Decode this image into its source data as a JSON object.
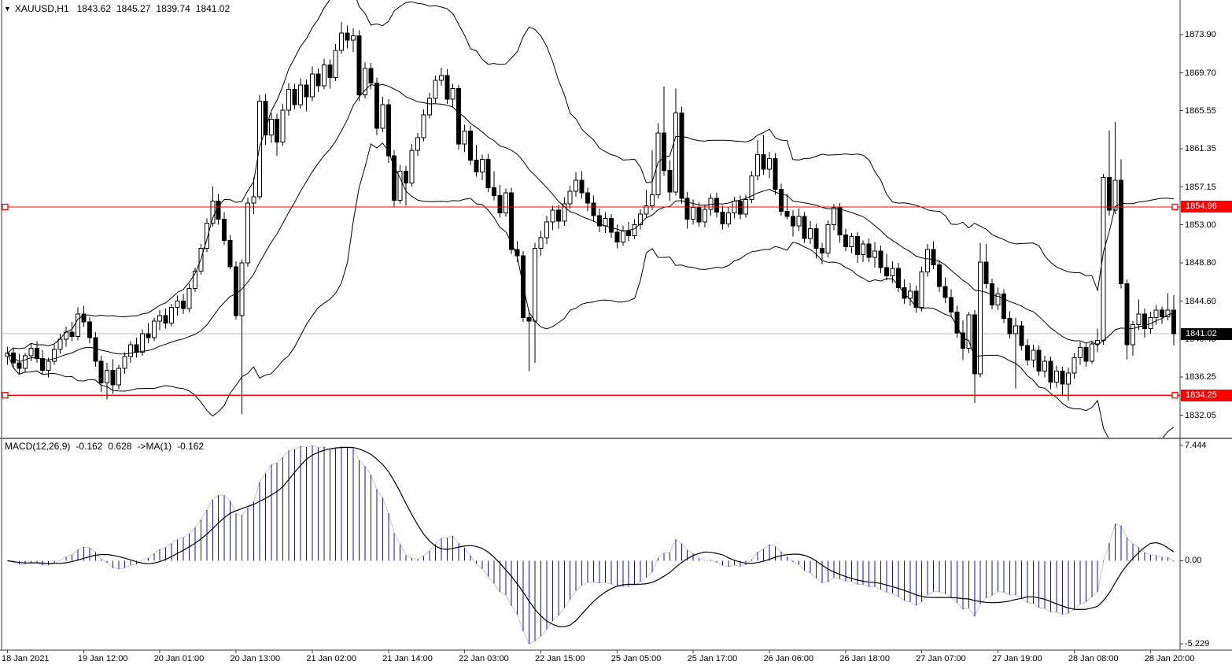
{
  "window": {
    "symbol": "XAUUSD,H1",
    "ohlc_line": {
      "open": "1843.62",
      "high": "1845.27",
      "low": "1839.74",
      "close": "1841.02"
    }
  },
  "macd_panel": {
    "label": "MACD(12,26,9)",
    "value_main": "-0.162",
    "value_signal": "0.628",
    "ma_label": "->MA(1)",
    "ma_value": "-0.162",
    "axis_labels": {
      "max": "7.444",
      "zero": "0.00",
      "min": "-5.229"
    }
  },
  "price_axis": {
    "tick_labels": [
      "1873.90",
      "1869.70",
      "1865.55",
      "1861.35",
      "1857.15",
      "1853.00",
      "1848.80",
      "1844.60",
      "1840.45",
      "1836.25",
      "1832.05"
    ],
    "level_badges": [
      "1854.96",
      "1834.25"
    ],
    "current_price_badge": "1841.02"
  },
  "time_axis": {
    "labels": [
      "18 Jan 2021",
      "19 Jan 12:00",
      "20 Jan 01:00",
      "20 Jan 13:00",
      "21 Jan 02:00",
      "21 Jan 14:00",
      "22 Jan 03:00",
      "22 Jan 15:00",
      "25 Jan 05:00",
      "25 Jan 17:00",
      "26 Jan 06:00",
      "26 Jan 18:00",
      "27 Jan 07:00",
      "27 Jan 19:00",
      "28 Jan 08:00",
      "28 Jan 20:00"
    ]
  },
  "colors": {
    "background": "#ffffff",
    "bull_body": "#ffffff",
    "bear_body": "#000000",
    "candle_outline": "#000000",
    "band_line": "#000000",
    "level_line": "#ff0000",
    "current_price_line": "#b8b8b8",
    "badge_level_bg": "#ff0000",
    "badge_price_bg": "#000000",
    "badge_text": "#ffffff",
    "macd_histogram": "#12129b",
    "macd_signal": "#000000",
    "macd_ma_tracer": "#c8c8c8",
    "chrome": "#3a3a3a",
    "divider": "#7a7a7a"
  },
  "chart_data": {
    "type": "candlestick",
    "symbol": "XAUUSD",
    "timeframe": "H1",
    "title": "XAUUSD,H1 1843.62 1845.27 1839.74 1841.02",
    "y_ticks": [
      1873.9,
      1869.7,
      1865.55,
      1861.35,
      1857.15,
      1853.0,
      1848.8,
      1844.6,
      1840.45,
      1836.25,
      1832.05
    ],
    "y_range_visible": [
      1829.0,
      1877.5
    ],
    "levels": {
      "resistance": 1854.96,
      "support": 1834.25,
      "current_price": 1841.02
    },
    "x_label_every": 13,
    "indicators": {
      "bollinger": {
        "period": 20,
        "deviation": 2
      },
      "macd": {
        "fast": 12,
        "slow": 26,
        "signal": 9,
        "overlay_ma": 1,
        "displayed_max": 7.444,
        "displayed_min": -5.229,
        "last_main": -0.162,
        "last_signal": 0.628
      }
    },
    "ohlc": [
      [
        1838.5,
        1839.6,
        1837.6,
        1838.9
      ],
      [
        1838.9,
        1839.4,
        1837.2,
        1837.8
      ],
      [
        1837.8,
        1838.8,
        1836.6,
        1837.2
      ],
      [
        1837.2,
        1838.9,
        1836.8,
        1838.6
      ],
      [
        1838.6,
        1840.0,
        1838.0,
        1839.4
      ],
      [
        1839.4,
        1840.2,
        1837.8,
        1838.3
      ],
      [
        1838.3,
        1839.2,
        1836.5,
        1837.0
      ],
      [
        1837.0,
        1838.4,
        1836.2,
        1838.0
      ],
      [
        1838.0,
        1839.8,
        1837.6,
        1839.3
      ],
      [
        1839.3,
        1841.0,
        1838.8,
        1840.4
      ],
      [
        1840.4,
        1841.8,
        1839.6,
        1841.2
      ],
      [
        1841.2,
        1842.3,
        1840.2,
        1840.7
      ],
      [
        1840.7,
        1843.9,
        1840.3,
        1843.2
      ],
      [
        1843.2,
        1844.1,
        1841.8,
        1842.3
      ],
      [
        1842.3,
        1842.9,
        1840.0,
        1840.6
      ],
      [
        1840.6,
        1841.2,
        1837.4,
        1838.0
      ],
      [
        1838.0,
        1838.6,
        1834.6,
        1835.6
      ],
      [
        1835.6,
        1837.8,
        1833.8,
        1837.0
      ],
      [
        1837.0,
        1838.2,
        1834.4,
        1835.4
      ],
      [
        1835.4,
        1837.6,
        1834.9,
        1837.2
      ],
      [
        1837.2,
        1839.0,
        1836.6,
        1838.5
      ],
      [
        1838.5,
        1840.2,
        1837.8,
        1839.8
      ],
      [
        1839.8,
        1840.6,
        1838.4,
        1839.0
      ],
      [
        1839.0,
        1841.5,
        1838.6,
        1841.0
      ],
      [
        1841.0,
        1842.2,
        1840.0,
        1840.6
      ],
      [
        1840.6,
        1842.8,
        1840.2,
        1842.4
      ],
      [
        1842.4,
        1843.6,
        1841.4,
        1843.0
      ],
      [
        1843.0,
        1843.8,
        1841.6,
        1842.2
      ],
      [
        1842.2,
        1844.3,
        1841.8,
        1843.9
      ],
      [
        1843.9,
        1845.2,
        1843.0,
        1844.6
      ],
      [
        1844.6,
        1845.4,
        1843.2,
        1843.8
      ],
      [
        1843.8,
        1846.5,
        1843.4,
        1846.0
      ],
      [
        1846.0,
        1848.3,
        1845.6,
        1847.9
      ],
      [
        1847.9,
        1850.9,
        1847.5,
        1850.4
      ],
      [
        1850.4,
        1853.7,
        1850.0,
        1853.2
      ],
      [
        1853.2,
        1857.2,
        1852.8,
        1855.6
      ],
      [
        1855.6,
        1856.4,
        1853.0,
        1853.6
      ],
      [
        1853.6,
        1854.4,
        1850.8,
        1851.3
      ],
      [
        1851.3,
        1851.9,
        1848.1,
        1848.4
      ],
      [
        1848.4,
        1849.0,
        1842.6,
        1843.0
      ],
      [
        1843.0,
        1849.2,
        1832.2,
        1848.8
      ],
      [
        1848.8,
        1856.0,
        1848.4,
        1855.4
      ],
      [
        1855.4,
        1858.2,
        1854.2,
        1856.1
      ],
      [
        1856.1,
        1867.3,
        1855.8,
        1866.6
      ],
      [
        1866.6,
        1867.4,
        1861.8,
        1862.9
      ],
      [
        1862.9,
        1865.3,
        1862.0,
        1864.6
      ],
      [
        1864.6,
        1865.2,
        1860.6,
        1862.1
      ],
      [
        1862.1,
        1866.3,
        1861.7,
        1865.6
      ],
      [
        1865.6,
        1868.6,
        1865.0,
        1867.9
      ],
      [
        1867.9,
        1868.5,
        1865.7,
        1866.2
      ],
      [
        1866.2,
        1869.1,
        1865.8,
        1868.4
      ],
      [
        1868.4,
        1869.0,
        1865.5,
        1867.1
      ],
      [
        1867.1,
        1870.4,
        1866.6,
        1869.6
      ],
      [
        1869.6,
        1870.2,
        1867.6,
        1868.3
      ],
      [
        1868.3,
        1871.3,
        1867.9,
        1870.6
      ],
      [
        1870.6,
        1871.2,
        1868.0,
        1869.2
      ],
      [
        1869.2,
        1872.9,
        1868.8,
        1872.2
      ],
      [
        1872.2,
        1875.3,
        1871.8,
        1874.1
      ],
      [
        1874.1,
        1874.9,
        1872.4,
        1873.3
      ],
      [
        1873.3,
        1874.6,
        1872.0,
        1873.8
      ],
      [
        1873.8,
        1874.4,
        1866.6,
        1867.3
      ],
      [
        1867.3,
        1870.9,
        1866.9,
        1870.2
      ],
      [
        1870.2,
        1870.8,
        1867.9,
        1868.6
      ],
      [
        1868.6,
        1869.2,
        1862.9,
        1863.6
      ],
      [
        1863.6,
        1867.1,
        1863.2,
        1866.2
      ],
      [
        1866.2,
        1866.8,
        1859.8,
        1860.6
      ],
      [
        1860.6,
        1861.2,
        1854.9,
        1855.7
      ],
      [
        1855.7,
        1859.6,
        1855.3,
        1858.9
      ],
      [
        1858.9,
        1859.5,
        1855.1,
        1857.6
      ],
      [
        1857.6,
        1861.9,
        1857.2,
        1861.2
      ],
      [
        1861.2,
        1863.1,
        1860.6,
        1862.6
      ],
      [
        1862.6,
        1865.7,
        1862.2,
        1865.1
      ],
      [
        1865.1,
        1867.5,
        1864.7,
        1866.9
      ],
      [
        1866.9,
        1869.4,
        1866.4,
        1868.9
      ],
      [
        1868.9,
        1870.3,
        1868.3,
        1869.4
      ],
      [
        1869.4,
        1870.1,
        1866.3,
        1866.8
      ],
      [
        1866.8,
        1868.5,
        1866.0,
        1868.0
      ],
      [
        1868.0,
        1868.4,
        1861.3,
        1861.9
      ],
      [
        1861.9,
        1864.0,
        1861.0,
        1863.3
      ],
      [
        1863.3,
        1863.9,
        1859.6,
        1860.1
      ],
      [
        1860.1,
        1861.8,
        1858.3,
        1858.8
      ],
      [
        1858.8,
        1860.7,
        1857.9,
        1860.2
      ],
      [
        1860.2,
        1860.8,
        1856.6,
        1857.1
      ],
      [
        1857.1,
        1858.9,
        1855.7,
        1856.2
      ],
      [
        1856.2,
        1857.4,
        1853.8,
        1854.3
      ],
      [
        1854.3,
        1857.0,
        1853.9,
        1856.5
      ],
      [
        1856.5,
        1857.1,
        1849.8,
        1850.3
      ],
      [
        1850.3,
        1851.2,
        1848.9,
        1849.6
      ],
      [
        1849.6,
        1850.1,
        1842.3,
        1842.8
      ],
      [
        1842.8,
        1843.6,
        1836.9,
        1842.4
      ],
      [
        1842.4,
        1851.0,
        1837.8,
        1850.4
      ],
      [
        1850.4,
        1852.3,
        1849.6,
        1851.6
      ],
      [
        1851.6,
        1854.0,
        1850.9,
        1853.3
      ],
      [
        1853.3,
        1855.1,
        1852.4,
        1854.6
      ],
      [
        1854.6,
        1855.2,
        1852.6,
        1853.4
      ],
      [
        1853.4,
        1856.0,
        1852.9,
        1855.3
      ],
      [
        1855.3,
        1857.3,
        1854.8,
        1856.7
      ],
      [
        1856.7,
        1858.8,
        1856.1,
        1857.9
      ],
      [
        1857.9,
        1858.9,
        1855.9,
        1856.5
      ],
      [
        1856.5,
        1857.1,
        1854.5,
        1855.4
      ],
      [
        1855.4,
        1856.2,
        1853.3,
        1854.0
      ],
      [
        1854.0,
        1854.8,
        1852.2,
        1852.9
      ],
      [
        1852.9,
        1854.4,
        1852.1,
        1853.7
      ],
      [
        1853.7,
        1854.2,
        1851.6,
        1852.2
      ],
      [
        1852.2,
        1853.0,
        1850.4,
        1851.1
      ],
      [
        1851.1,
        1852.9,
        1850.7,
        1852.3
      ],
      [
        1852.3,
        1853.3,
        1851.2,
        1851.8
      ],
      [
        1851.8,
        1853.6,
        1851.4,
        1853.0
      ],
      [
        1853.0,
        1854.7,
        1852.5,
        1854.2
      ],
      [
        1854.2,
        1856.8,
        1853.8,
        1855.1
      ],
      [
        1855.1,
        1861.2,
        1854.6,
        1856.3
      ],
      [
        1856.3,
        1864.2,
        1855.9,
        1863.1
      ],
      [
        1863.1,
        1868.2,
        1858.4,
        1859.0
      ],
      [
        1859.0,
        1860.1,
        1855.6,
        1856.6
      ],
      [
        1856.6,
        1868.0,
        1856.2,
        1865.3
      ],
      [
        1865.3,
        1866.0,
        1855.3,
        1855.9
      ],
      [
        1855.9,
        1856.6,
        1852.6,
        1853.6
      ],
      [
        1853.6,
        1855.8,
        1853.0,
        1854.9
      ],
      [
        1854.9,
        1855.5,
        1852.8,
        1853.3
      ],
      [
        1853.3,
        1855.2,
        1852.7,
        1854.7
      ],
      [
        1854.7,
        1856.4,
        1854.0,
        1855.9
      ],
      [
        1855.9,
        1856.5,
        1853.8,
        1854.4
      ],
      [
        1854.4,
        1855.1,
        1852.5,
        1853.1
      ],
      [
        1853.1,
        1855.0,
        1852.7,
        1854.3
      ],
      [
        1854.3,
        1856.1,
        1853.7,
        1855.6
      ],
      [
        1855.6,
        1856.2,
        1853.6,
        1854.2
      ],
      [
        1854.2,
        1856.3,
        1853.8,
        1855.8
      ],
      [
        1855.8,
        1858.9,
        1855.4,
        1858.4
      ],
      [
        1858.4,
        1862.3,
        1857.9,
        1860.7
      ],
      [
        1860.7,
        1862.9,
        1858.5,
        1859.1
      ],
      [
        1859.1,
        1861.0,
        1858.1,
        1860.3
      ],
      [
        1860.3,
        1860.9,
        1856.3,
        1856.9
      ],
      [
        1856.9,
        1857.5,
        1854.0,
        1854.5
      ],
      [
        1854.5,
        1856.4,
        1853.6,
        1853.9
      ],
      [
        1853.9,
        1854.6,
        1851.7,
        1852.9
      ],
      [
        1852.9,
        1854.8,
        1852.3,
        1853.9
      ],
      [
        1853.9,
        1854.4,
        1851.0,
        1851.5
      ],
      [
        1851.5,
        1853.4,
        1850.9,
        1852.6
      ],
      [
        1852.6,
        1853.1,
        1849.3,
        1850.4
      ],
      [
        1850.4,
        1851.0,
        1848.7,
        1849.9
      ],
      [
        1849.9,
        1853.5,
        1849.4,
        1853.0
      ],
      [
        1853.0,
        1855.3,
        1852.4,
        1854.9
      ],
      [
        1854.9,
        1855.4,
        1851.0,
        1851.9
      ],
      [
        1851.9,
        1852.6,
        1850.1,
        1850.6
      ],
      [
        1850.6,
        1852.1,
        1849.9,
        1851.7
      ],
      [
        1851.7,
        1852.2,
        1848.8,
        1849.7
      ],
      [
        1849.7,
        1851.3,
        1848.9,
        1850.9
      ],
      [
        1850.9,
        1851.5,
        1848.9,
        1849.4
      ],
      [
        1849.4,
        1851.1,
        1848.3,
        1850.1
      ],
      [
        1850.1,
        1850.7,
        1847.7,
        1848.3
      ],
      [
        1848.3,
        1849.8,
        1846.9,
        1847.4
      ],
      [
        1847.4,
        1849.0,
        1846.6,
        1848.2
      ],
      [
        1848.2,
        1848.8,
        1845.6,
        1846.1
      ],
      [
        1846.1,
        1847.0,
        1844.3,
        1844.9
      ],
      [
        1844.9,
        1846.6,
        1844.1,
        1845.7
      ],
      [
        1845.7,
        1846.3,
        1843.3,
        1843.9
      ],
      [
        1843.9,
        1848.4,
        1843.5,
        1847.8
      ],
      [
        1847.8,
        1850.9,
        1847.3,
        1850.3
      ],
      [
        1850.3,
        1851.2,
        1848.1,
        1848.6
      ],
      [
        1848.6,
        1849.1,
        1845.6,
        1846.2
      ],
      [
        1846.2,
        1847.2,
        1844.4,
        1845.0
      ],
      [
        1845.0,
        1845.9,
        1842.9,
        1843.4
      ],
      [
        1843.4,
        1844.1,
        1840.6,
        1841.1
      ],
      [
        1841.1,
        1842.5,
        1838.1,
        1839.4
      ],
      [
        1839.4,
        1843.4,
        1838.9,
        1843.1
      ],
      [
        1843.1,
        1843.6,
        1833.4,
        1836.6
      ],
      [
        1836.6,
        1851.0,
        1836.2,
        1848.9
      ],
      [
        1848.9,
        1850.9,
        1846.0,
        1846.5
      ],
      [
        1846.5,
        1847.1,
        1843.7,
        1844.2
      ],
      [
        1844.2,
        1846.1,
        1843.6,
        1845.4
      ],
      [
        1845.4,
        1845.9,
        1842.2,
        1842.7
      ],
      [
        1842.7,
        1843.5,
        1840.5,
        1841.0
      ],
      [
        1841.0,
        1842.8,
        1835.0,
        1841.9
      ],
      [
        1841.9,
        1842.4,
        1839.2,
        1839.7
      ],
      [
        1839.7,
        1840.4,
        1837.5,
        1838.1
      ],
      [
        1838.1,
        1839.8,
        1837.3,
        1839.2
      ],
      [
        1839.2,
        1839.7,
        1836.4,
        1836.9
      ],
      [
        1836.9,
        1838.6,
        1836.2,
        1838.0
      ],
      [
        1838.0,
        1838.5,
        1834.9,
        1835.7
      ],
      [
        1835.7,
        1837.5,
        1835.1,
        1836.9
      ],
      [
        1836.9,
        1837.4,
        1834.3,
        1835.5
      ],
      [
        1835.5,
        1837.3,
        1833.6,
        1836.7
      ],
      [
        1836.7,
        1838.9,
        1836.1,
        1838.4
      ],
      [
        1838.4,
        1840.1,
        1837.6,
        1839.5
      ],
      [
        1839.5,
        1840.0,
        1837.4,
        1838.0
      ],
      [
        1838.0,
        1840.3,
        1837.7,
        1839.9
      ],
      [
        1839.9,
        1841.6,
        1839.0,
        1840.3
      ],
      [
        1840.3,
        1858.6,
        1839.8,
        1858.2
      ],
      [
        1858.2,
        1863.4,
        1854.0,
        1854.6
      ],
      [
        1854.6,
        1864.3,
        1854.2,
        1857.9
      ],
      [
        1857.9,
        1860.2,
        1846.0,
        1846.5
      ],
      [
        1846.5,
        1847.0,
        1838.2,
        1839.8
      ],
      [
        1839.8,
        1842.4,
        1838.6,
        1842.0
      ],
      [
        1842.0,
        1844.8,
        1841.4,
        1843.2
      ],
      [
        1843.2,
        1843.8,
        1840.6,
        1841.6
      ],
      [
        1841.6,
        1843.4,
        1841.0,
        1842.8
      ],
      [
        1842.8,
        1844.2,
        1842.0,
        1843.6
      ],
      [
        1843.6,
        1844.0,
        1842.1,
        1842.9
      ],
      [
        1842.9,
        1845.5,
        1842.5,
        1843.62
      ],
      [
        1843.62,
        1845.27,
        1839.74,
        1841.02
      ]
    ]
  }
}
